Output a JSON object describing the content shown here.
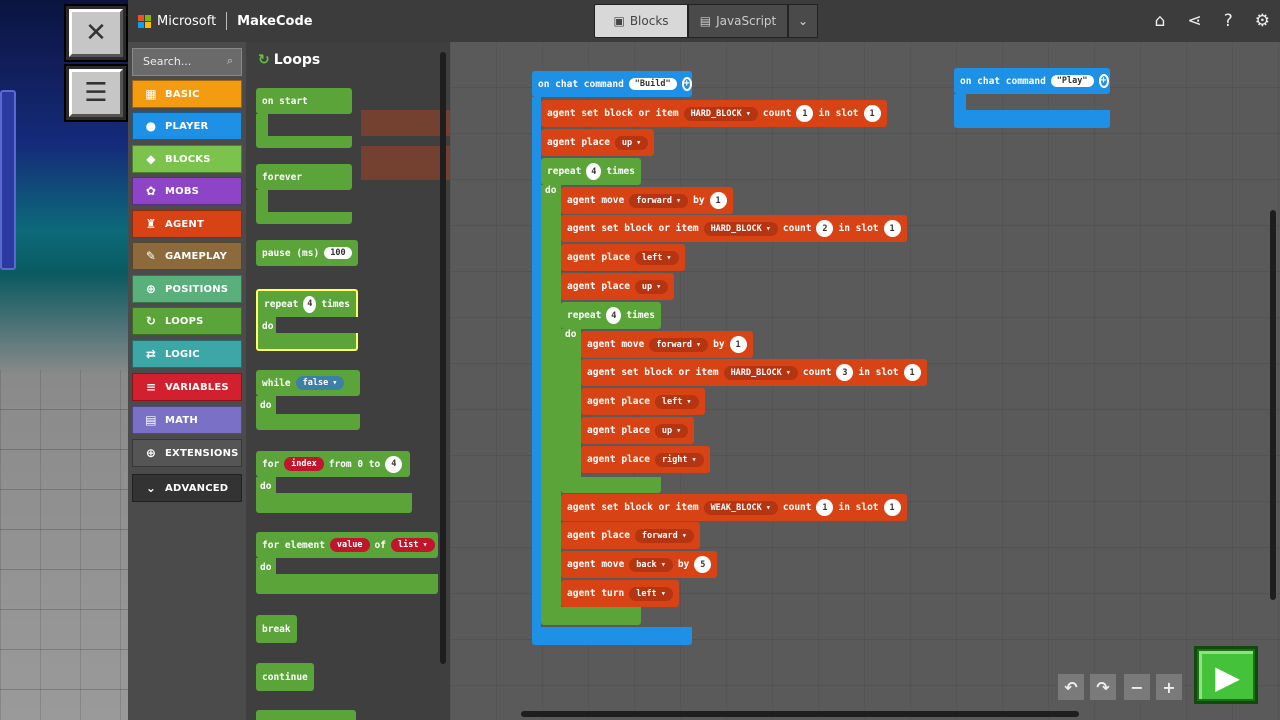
{
  "app": {
    "brand": "Microsoft",
    "product": "MakeCode"
  },
  "minecraft": {
    "close_icon": "✕",
    "menu_icon": "☰"
  },
  "editor_tabs": {
    "blocks": "Blocks",
    "javascript": "JavaScript"
  },
  "top_icons": [
    "home-icon",
    "share-icon",
    "help-icon",
    "settings-icon"
  ],
  "search": {
    "placeholder": "Search..."
  },
  "categories": [
    {
      "label": "BASIC",
      "color": "#f39c12",
      "icon": "▦"
    },
    {
      "label": "PLAYER",
      "color": "#1e90e6",
      "icon": "●"
    },
    {
      "label": "BLOCKS",
      "color": "#7cc34e",
      "icon": "◆"
    },
    {
      "label": "MOBS",
      "color": "#8e44c7",
      "icon": "✿"
    },
    {
      "label": "AGENT",
      "color": "#d84315",
      "icon": "♜"
    },
    {
      "label": "GAMEPLAY",
      "color": "#8c6a3c",
      "icon": "✎"
    },
    {
      "label": "POSITIONS",
      "color": "#59b07a",
      "icon": "⊕"
    },
    {
      "label": "LOOPS",
      "color": "#5ba43a",
      "icon": "↻"
    },
    {
      "label": "LOGIC",
      "color": "#3da6a6",
      "icon": "⇄"
    },
    {
      "label": "VARIABLES",
      "color": "#d3202f",
      "icon": "≡"
    },
    {
      "label": "MATH",
      "color": "#7a70c6",
      "icon": "▤"
    },
    {
      "label": "EXTENSIONS",
      "color": "#555555",
      "icon": "⊕"
    },
    {
      "label": "ADVANCED",
      "color": "#333333",
      "icon": "⌄"
    }
  ],
  "flyout": {
    "title": "Loops",
    "on_start": "on start",
    "forever": "forever",
    "pause": {
      "label": "pause (ms)",
      "value": "100"
    },
    "repeat": {
      "label": "repeat",
      "value": "4",
      "times": "times",
      "do": "do"
    },
    "while": {
      "label": "while",
      "value": "false",
      "do": "do"
    },
    "for": {
      "label": "for",
      "var": "index",
      "from": "from 0 to",
      "value": "4",
      "do": "do"
    },
    "for_element": {
      "label": "for element",
      "var": "value",
      "of": "of",
      "list": "list",
      "do": "do"
    },
    "break": "break",
    "continue": "continue"
  },
  "workspace": {
    "build": {
      "header": "on chat command",
      "command": "Build",
      "set1": {
        "label": "agent set block or item",
        "item": "HARD_BLOCK",
        "count_label": "count",
        "count": "1",
        "slot_label": "in slot",
        "slot": "1"
      },
      "place_up": {
        "label": "agent place",
        "dir": "up"
      },
      "repeat_outer": {
        "label": "repeat",
        "value": "4",
        "times": "times",
        "do": "do"
      },
      "move_fwd1": {
        "label": "agent move",
        "dir": "forward",
        "by": "by",
        "value": "1"
      },
      "set2": {
        "label": "agent set block or item",
        "item": "HARD_BLOCK",
        "count_label": "count",
        "count": "2",
        "slot_label": "in slot",
        "slot": "1"
      },
      "place_left1": {
        "label": "agent place",
        "dir": "left"
      },
      "place_up1": {
        "label": "agent place",
        "dir": "up"
      },
      "repeat_inner": {
        "label": "repeat",
        "value": "4",
        "times": "times",
        "do": "do"
      },
      "move_fwd2": {
        "label": "agent move",
        "dir": "forward",
        "by": "by",
        "value": "1"
      },
      "set3": {
        "label": "agent set block or item",
        "item": "HARD_BLOCK",
        "count_label": "count",
        "count": "3",
        "slot_label": "in slot",
        "slot": "1"
      },
      "place_left2": {
        "label": "agent place",
        "dir": "left"
      },
      "place_up2": {
        "label": "agent place",
        "dir": "up"
      },
      "place_right": {
        "label": "agent place",
        "dir": "right"
      },
      "set4": {
        "label": "agent set block or item",
        "item": "WEAK_BLOCK",
        "count_label": "count",
        "count": "1",
        "slot_label": "in slot",
        "slot": "1"
      },
      "place_fwd": {
        "label": "agent place",
        "dir": "forward"
      },
      "move_back": {
        "label": "agent move",
        "dir": "back",
        "by": "by",
        "value": "5"
      },
      "turn_left": {
        "label": "agent turn",
        "dir": "left"
      }
    },
    "play": {
      "header": "on chat command",
      "command": "Play"
    }
  },
  "zoom": {
    "undo": "↶",
    "redo": "↷",
    "zoom_out": "−",
    "zoom_in": "+"
  },
  "play_button": "▶"
}
